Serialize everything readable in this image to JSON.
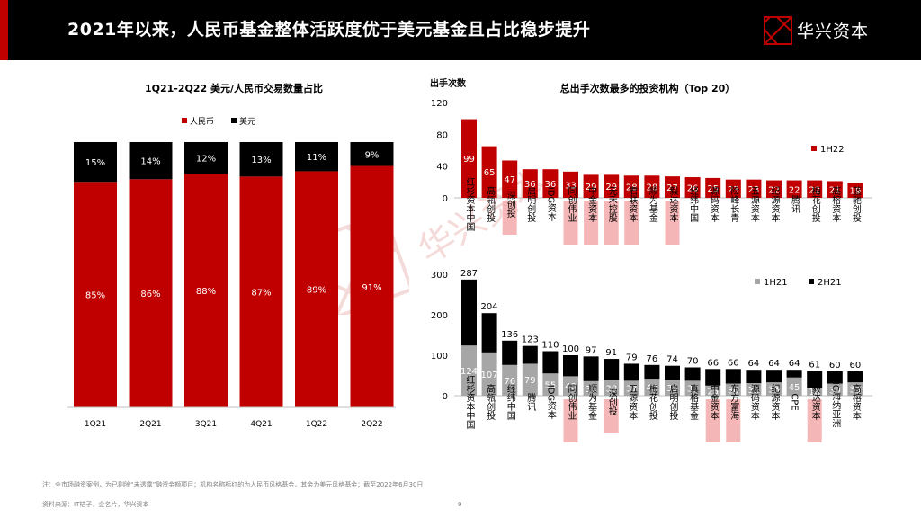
{
  "header": {
    "title": "2021年以来，人民币基金整体活跃度优于美元基金且占比稳步提升"
  },
  "logo": {
    "text": "华兴资本"
  },
  "watermark": {
    "text": "华兴资本"
  },
  "colors": {
    "rmb": "#c00000",
    "usd": "#000000",
    "h1_21": "#a6a6a6",
    "highlight": "#f4b6b6"
  },
  "footnotes": {
    "note": "注：全市场融资案例，为已剔除“未透露”融资金额项目；机构名称标红的为人民币风格基金，其余为美元风格基金；截至2022年6月30日",
    "source": "资料来源：IT桔子，企名片，华兴资本"
  },
  "page_number": "9",
  "chart_data": [
    {
      "type": "bar",
      "stacked": true,
      "title": "1Q21-2Q22 美元/人民币交易数量占比",
      "categories": [
        "1Q21",
        "2Q21",
        "3Q21",
        "4Q21",
        "1Q22",
        "2Q22"
      ],
      "series": [
        {
          "name": "人民币",
          "values": [
            85,
            86,
            88,
            87,
            89,
            91
          ],
          "labels": [
            "85%",
            "86%",
            "88%",
            "87%",
            "89%",
            "91%"
          ]
        },
        {
          "name": "美元",
          "values": [
            15,
            14,
            12,
            13,
            11,
            9
          ],
          "labels": [
            "15%",
            "14%",
            "12%",
            "13%",
            "11%",
            "9%"
          ]
        }
      ],
      "ylim": [
        0,
        100
      ],
      "legend": "top"
    },
    {
      "type": "bar",
      "title": "总出手次数最多的投资机构（Top 20）",
      "ylabel": "出手次数",
      "ylim": [
        0,
        120
      ],
      "yticks": [
        0,
        40,
        80,
        120
      ],
      "categories": [
        "红杉资本中国",
        "高瓴创投",
        "深创投",
        "启明创投",
        "IDG资本",
        "同创伟业",
        "中金资本",
        "元禾控股",
        "君联资本",
        "顺为基金",
        "毅达资本",
        "经纬中国",
        "源码资本",
        "险峰长青",
        "五源资本",
        "纪源资本",
        "腾讯",
        "梅花创投",
        "高榕资本",
        "蓝驰创投"
      ],
      "highlighted": [
        "深创投",
        "同创伟业",
        "中金资本",
        "元禾控股",
        "君联资本",
        "毅达资本"
      ],
      "series": [
        {
          "name": "1H22",
          "values": [
            99,
            65,
            47,
            36,
            36,
            33,
            29,
            29,
            28,
            28,
            27,
            26,
            25,
            23,
            23,
            22,
            22,
            22,
            21,
            19
          ]
        }
      ],
      "legend": "right"
    },
    {
      "type": "bar",
      "stacked": true,
      "ylim": [
        0,
        300
      ],
      "yticks": [
        0,
        100,
        200,
        300
      ],
      "categories": [
        "红杉资本中国",
        "高瓴创投",
        "经纬中国",
        "腾讯",
        "IDG资本",
        "同创伟业",
        "顺为基金",
        "深创投",
        "五源资本",
        "梅花创投",
        "启明创投",
        "真格基金",
        "中金资本",
        "东方富海",
        "源码资本",
        "纪源资本",
        "CPE",
        "毅达资本",
        "SIG海纳亚洲",
        "高榕资本"
      ],
      "highlighted": [
        "同创伟业",
        "深创投",
        "中金资本",
        "东方富海",
        "毅达资本"
      ],
      "totals": [
        287,
        204,
        136,
        123,
        110,
        100,
        97,
        91,
        79,
        76,
        74,
        70,
        66,
        66,
        64,
        64,
        64,
        61,
        60,
        60
      ],
      "series": [
        {
          "name": "1H21",
          "values": [
            124,
            107,
            76,
            79,
            55,
            48,
            36,
            38,
            37,
            42,
            39,
            37,
            25,
            30,
            31,
            33,
            45,
            18,
            30,
            33
          ]
        },
        {
          "name": "2H21",
          "values": [
            163,
            97,
            60,
            44,
            55,
            52,
            61,
            53,
            42,
            34,
            35,
            33,
            41,
            36,
            33,
            31,
            19,
            43,
            30,
            27
          ]
        }
      ],
      "legend": "top-right"
    }
  ]
}
